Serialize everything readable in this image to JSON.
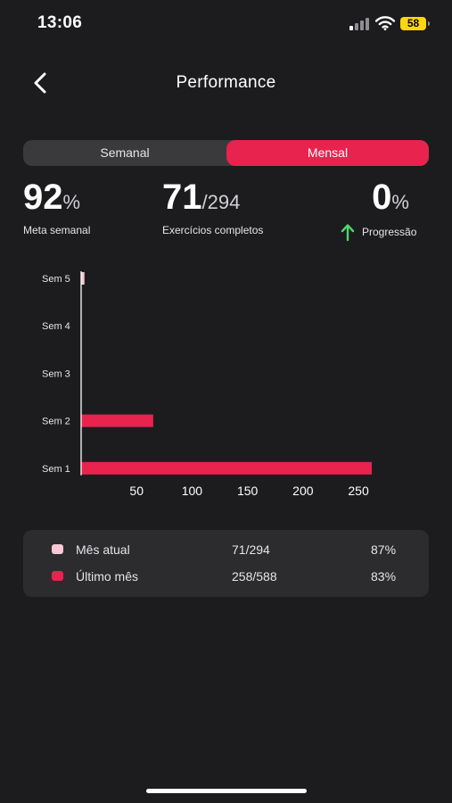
{
  "status_bar": {
    "time": "13:06",
    "battery": "58",
    "icons": [
      "cellular-signal-icon",
      "wifi-icon",
      "battery-icon"
    ]
  },
  "header": {
    "back_icon": "chevron-left-icon",
    "title": "Performance"
  },
  "tabs": [
    {
      "label": "Semanal",
      "selected": false
    },
    {
      "label": "Mensal",
      "selected": true
    }
  ],
  "stats": {
    "goal": {
      "value": "92",
      "unit": "%",
      "label": "Meta semanal"
    },
    "exercises": {
      "value": "71",
      "total": "/294",
      "label": "Exercícios completos"
    },
    "progress": {
      "value": "0",
      "unit": "%",
      "label": "Progressão",
      "icon": "arrow-up-icon"
    }
  },
  "colors": {
    "accent": "#e8234e",
    "current_month": "#f8c8d4",
    "background": "#1c1c1e",
    "card": "#2c2c2e",
    "progress_arrow": "#4cd964"
  },
  "chart_data": {
    "type": "bar",
    "orientation": "horizontal",
    "categories": [
      "Sem 1",
      "Sem 2",
      "Sem 3",
      "Sem 4",
      "Sem 5"
    ],
    "series": [
      {
        "name": "Mês atual",
        "color": "#f8c8d4",
        "values": [
          0,
          0,
          0,
          0,
          3
        ]
      },
      {
        "name": "Último mês",
        "color": "#e8234e",
        "values": [
          262,
          65,
          0,
          0,
          0
        ]
      }
    ],
    "x_ticks": [
      50,
      100,
      150,
      200,
      250
    ],
    "xlim": [
      0,
      262
    ],
    "grid": false,
    "legend": "below"
  },
  "legend": [
    {
      "name": "Mês atual",
      "value": "71/294",
      "percent": "87%",
      "color": "#f8c8d4"
    },
    {
      "name": "Último mês",
      "value": "258/588",
      "percent": "83%",
      "color": "#e8234e"
    }
  ]
}
